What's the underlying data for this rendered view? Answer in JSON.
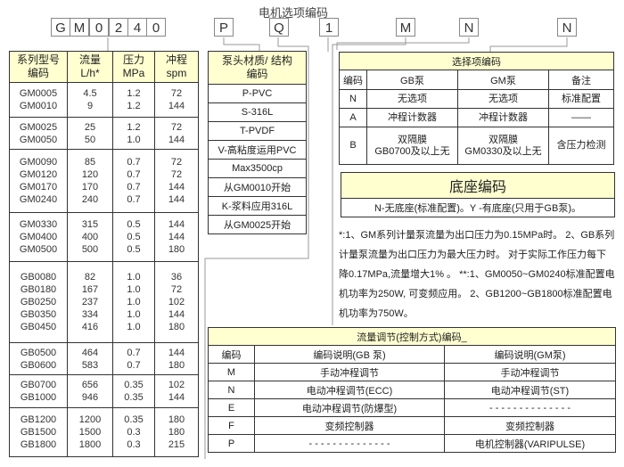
{
  "title": "电机选项编码",
  "model_code": [
    "G",
    "M",
    "0",
    "2",
    "4",
    "0"
  ],
  "option_codes": [
    "P",
    "Q",
    "1",
    "M",
    "N",
    "N"
  ],
  "series_table": {
    "headers": [
      "系列型号\n编码",
      "流量\nL/h*",
      "压力\nMPa",
      "冲程\nspm"
    ],
    "groups": [
      [
        [
          "GM0005",
          "4.5",
          "1.2",
          "72"
        ],
        [
          "GM0010",
          "9",
          "1.2",
          "144"
        ]
      ],
      [
        [
          "GM0025",
          "25",
          "1.2",
          "72"
        ],
        [
          "GM0050",
          "50",
          "1.0",
          "144"
        ]
      ],
      [
        [
          "GM0090",
          "85",
          "0.7",
          "72"
        ],
        [
          "GM0120",
          "120",
          "0.7",
          "72"
        ],
        [
          "GM0170",
          "170",
          "0.7",
          "144"
        ],
        [
          "GM0240",
          "240",
          "0.7",
          "144"
        ]
      ],
      [
        [
          "GM0330",
          "315",
          "0.5",
          "144"
        ],
        [
          "GM0400",
          "400",
          "0.5",
          "144"
        ],
        [
          "GM0500",
          "500",
          "0.5",
          "180"
        ]
      ],
      [
        [
          "GB0080",
          "82",
          "1.0",
          "36"
        ],
        [
          "GB0180",
          "167",
          "1.0",
          "72"
        ],
        [
          "GB0250",
          "237",
          "1.0",
          "102"
        ],
        [
          "GB0350",
          "334",
          "1.0",
          "144"
        ],
        [
          "GB0450",
          "416",
          "1.0",
          "180"
        ]
      ],
      [
        [
          "GB0500",
          "464",
          "0.7",
          "144"
        ],
        [
          "GB0600",
          "583",
          "0.7",
          "180"
        ]
      ],
      [
        [
          "GB0700",
          "656",
          "0.35",
          "102"
        ],
        [
          "GB1000",
          "946",
          "0.35",
          "144"
        ]
      ],
      [
        [
          "GB1200",
          "1200",
          "0.35",
          "180"
        ],
        [
          "GB1500",
          "1500",
          "0.3",
          "180"
        ],
        [
          "GB1800",
          "1800",
          "0.3",
          "215"
        ]
      ]
    ]
  },
  "material_table": {
    "header": "泵头材质/ 结构\n编码",
    "rows": [
      "P-PVC",
      "S-316L",
      "T-PVDF",
      "V-高粘度运用PVC",
      "Max3500cp",
      "从GM0010开始",
      "K-浆料应用316L",
      "从GM0025开始"
    ]
  },
  "option_table": {
    "title": "选择项编码",
    "headers": [
      "编码",
      "GB泵",
      "GM泵",
      "备注"
    ],
    "rows": [
      [
        "N",
        "无选项",
        "无选项",
        "标准配置"
      ],
      [
        "A",
        "冲程计数器",
        "冲程计数器",
        "——"
      ],
      [
        "B",
        "双隔膜\nGB0700及以上无",
        "双隔膜\nGM0330及以上无",
        "含压力检测"
      ]
    ]
  },
  "base_table": {
    "title": "底座编码",
    "text": "N-无底座(标准配置)。Y -有底座(只用于GB泵)。"
  },
  "notes": "*:1、GM系列计量泵流量为出口压力为0.15MPa时。 2、GB系列计量泵流量为出口压力为最大压力时。 对于实际工作压力每下降0.17MPa,流量增大1% 。 **:1、GM0050~GM0240标准配置电机功率为250W, 可变频应用。 2、GB1200~GB1800标准配置电机功率为750W。",
  "flow_table": {
    "title": "流量调节(控制方式)编码_",
    "headers": [
      "编码",
      "编码说明(GB 泵)",
      "编码说明(GM泵)"
    ],
    "rows": [
      [
        "M",
        "手动冲程调节",
        "手动冲程调节"
      ],
      [
        "N",
        "电动冲程调节(ECC)",
        "电动冲程调节(ST)"
      ],
      [
        "E",
        "电动冲程调节(防爆型)",
        "- - - - - - - - - - - - - -"
      ],
      [
        "F",
        "变频控制器",
        "变频控制器"
      ],
      [
        "P",
        "- - - - - - - - - - - - - -",
        "电机控制器(VARIPULSE)"
      ]
    ]
  },
  "colors": {
    "header_fill": "#ffffd0",
    "border": "#333333",
    "connector": "#999999"
  }
}
